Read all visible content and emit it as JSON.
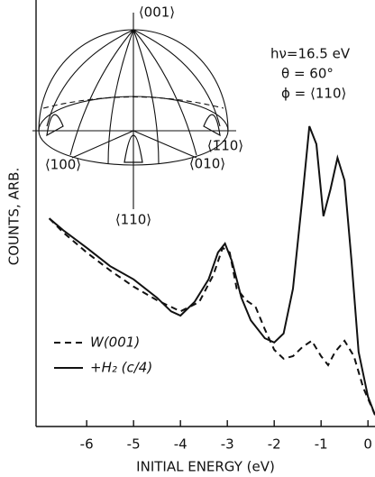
{
  "chart_data": {
    "type": "line",
    "xlabel": "INITIAL ENERGY (eV)",
    "ylabel": "COUNTS, ARB.",
    "annotations": [
      "hν=16.5 eV",
      "θ = 60°",
      "ϕ = ⟨110⟩"
    ],
    "inset_labels": [
      "⟨001⟩",
      "⟨100⟩",
      "⟨110⟩",
      "⟨010⟩",
      "⟨1̄10⟩"
    ],
    "xlim": [
      -7.08,
      0.15
    ],
    "xticks": [
      -6,
      -5,
      -4,
      -3,
      -2,
      -1,
      0
    ],
    "ylim": [
      0,
      100
    ],
    "legend": "lower left",
    "series": [
      {
        "name": "W(001)",
        "color": "#111",
        "dash": "dashed",
        "x": [
          -6.8,
          -6.5,
          -6,
          -5.5,
          -5,
          -4.5,
          -4,
          -3.6,
          -3.3,
          -3.1,
          -2.95,
          -2.8,
          -2.6,
          -2.4,
          -2.2,
          -2,
          -1.8,
          -1.6,
          -1.4,
          -1.2,
          -1.0,
          -0.85,
          -0.7,
          -0.5,
          -0.3,
          -0.1,
          0.15
        ],
        "values": [
          48.8,
          45.5,
          40.8,
          36.6,
          32.8,
          29.6,
          27,
          29.2,
          35.5,
          41.9,
          40.8,
          32.3,
          29.6,
          28.1,
          22.8,
          18,
          15.9,
          16.5,
          18.6,
          20.1,
          16.5,
          14.4,
          17.5,
          20.1,
          16.5,
          9.1,
          2.7
        ]
      },
      {
        "name": "+H₂ (c/4)",
        "color": "#111",
        "dash": "solid",
        "x": [
          -6.8,
          -6.5,
          -6,
          -5.5,
          -5,
          -4.5,
          -4.2,
          -4,
          -3.7,
          -3.4,
          -3.2,
          -3.05,
          -2.9,
          -2.7,
          -2.5,
          -2.2,
          -2,
          -1.8,
          -1.6,
          -1.4,
          -1.25,
          -1.1,
          -0.95,
          -0.8,
          -0.65,
          -0.5,
          -0.35,
          -0.2,
          0,
          0.15
        ],
        "values": [
          48.8,
          46,
          41.9,
          37.6,
          34.5,
          30.2,
          27,
          26,
          29.2,
          34.5,
          40.8,
          42.9,
          38.7,
          30.2,
          24.9,
          20.7,
          19.7,
          21.8,
          32.3,
          53.5,
          70.4,
          66.2,
          49.3,
          55.6,
          63,
          57.7,
          38.7,
          17.5,
          7,
          2.7
        ]
      }
    ]
  }
}
